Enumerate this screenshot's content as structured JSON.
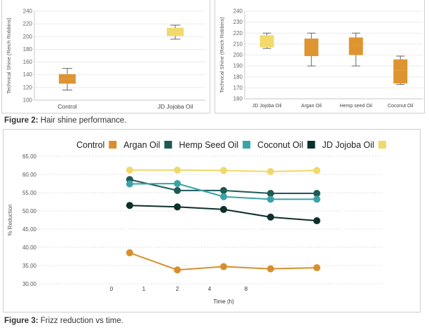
{
  "figure2": {
    "caption_label": "Figure 2:",
    "caption_text": " Hair shine performance."
  },
  "figure3": {
    "caption_label": "Figure 3:",
    "caption_text": " Frizz reduction vs time."
  },
  "colors": {
    "argan": "#d98e2b",
    "hemp": "#1e5a56",
    "coconut": "#3aa3a6",
    "jojoba": "#f0d86a",
    "control": "#0e2f2a",
    "box_orange": "#de9430",
    "box_yellow": "#f2d96b"
  },
  "chart_data": [
    {
      "type": "box",
      "title": "",
      "ylabel": "Technical Shine (Reich Robbins)",
      "ylim": [
        100,
        240
      ],
      "yticks": [
        "100",
        "120",
        "140",
        "160",
        "180",
        "200",
        "220",
        "240"
      ],
      "categories": [
        "Control",
        "JD Jojoba Oil"
      ],
      "boxes": [
        {
          "category": "Control",
          "min": 116,
          "q1": 126,
          "median": 134,
          "q3": 141,
          "max": 150,
          "color": "#de9430"
        },
        {
          "category": "JD Jojoba Oil",
          "min": 196,
          "q1": 201,
          "median": 207,
          "q3": 214,
          "max": 218,
          "color": "#f2d96b"
        }
      ]
    },
    {
      "type": "box",
      "title": "",
      "ylabel": "Technical Shine (Reich Robbins)",
      "ylim": [
        160,
        240
      ],
      "yticks": [
        "160",
        "170",
        "180",
        "190",
        "200",
        "210",
        "220",
        "230",
        "240"
      ],
      "categories": [
        "JD Jojoba Oil",
        "Argan Oil",
        "Hemp seed Oil",
        "Coconut Oil"
      ],
      "boxes": [
        {
          "category": "JD Jojoba Oil",
          "min": 206,
          "q1": 207,
          "median": 212,
          "q3": 218,
          "max": 220,
          "color": "#f2d96b"
        },
        {
          "category": "Argan Oil",
          "min": 190,
          "q1": 199,
          "median": 208,
          "q3": 215,
          "max": 220,
          "color": "#de9430"
        },
        {
          "category": "Hemp seed Oil",
          "min": 190,
          "q1": 200,
          "median": 209,
          "q3": 216,
          "max": 220,
          "color": "#de9430"
        },
        {
          "category": "Coconut Oil",
          "min": 173,
          "q1": 174,
          "median": 186,
          "q3": 196,
          "max": 199,
          "color": "#de9430"
        }
      ]
    },
    {
      "type": "line",
      "title": "",
      "xlabel": "Time (h)",
      "ylabel": "% Reduction",
      "ylim": [
        30,
        65
      ],
      "yticks": [
        "30.00",
        "35.00",
        "40.00",
        "45.00",
        "50.00",
        "55.00",
        "60.00",
        "65.00"
      ],
      "xticks": [
        "0",
        "1",
        "2",
        "4",
        "8"
      ],
      "legend_position": "top",
      "legend": [
        {
          "label": "Control",
          "color": "#d98e2b"
        },
        {
          "label": "Argan Oil",
          "color": "#1e5a56"
        },
        {
          "label": "Hemp Seed Oil",
          "color": "#3aa3a6"
        },
        {
          "label": "Coconut Oil",
          "color": "#0e2f2a"
        },
        {
          "label": "JD Jojoba Oil",
          "color": "#f0d86a"
        }
      ],
      "series": [
        {
          "color": "#d98e2b",
          "values": [
            38.5,
            33.8,
            34.7,
            34.1,
            34.4
          ]
        },
        {
          "color": "#1e5a56",
          "values": [
            58.6,
            55.6,
            55.6,
            54.8,
            54.8
          ]
        },
        {
          "color": "#3aa3a6",
          "values": [
            57.4,
            57.5,
            53.9,
            53.2,
            53.2
          ]
        },
        {
          "color": "#0e2f2a",
          "values": [
            51.5,
            51.1,
            50.4,
            48.3,
            47.3
          ]
        },
        {
          "color": "#f0d86a",
          "values": [
            61.2,
            61.2,
            61.1,
            60.8,
            61.1
          ]
        }
      ]
    }
  ]
}
